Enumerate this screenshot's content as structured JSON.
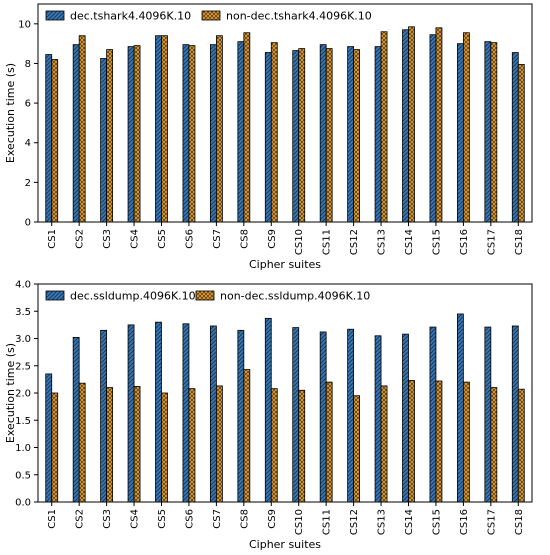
{
  "chart_data": [
    {
      "type": "bar",
      "xlabel": "Cipher suites",
      "ylabel": "Execution time (s)",
      "ylim": [
        0,
        11
      ],
      "yticks": [
        0,
        2,
        4,
        6,
        8,
        10
      ],
      "legend_position": "top-left",
      "grid": false,
      "categories": [
        "CS1",
        "CS2",
        "CS3",
        "CS4",
        "CS5",
        "CS6",
        "CS7",
        "CS8",
        "CS9",
        "CS10",
        "CS11",
        "CS12",
        "CS13",
        "CS14",
        "CS15",
        "CS16",
        "CS17",
        "CS18"
      ],
      "series": [
        {
          "name": "dec.tshark4.4096K.10",
          "color": "#3a78b5",
          "hatch": "diagonal",
          "values": [
            8.45,
            8.95,
            8.25,
            8.85,
            9.4,
            8.95,
            8.95,
            9.1,
            8.55,
            8.65,
            8.95,
            8.85,
            8.85,
            9.7,
            9.45,
            9.0,
            9.1,
            8.55
          ]
        },
        {
          "name": "non-dec.tshark4.4096K.10",
          "color": "#e8a33a",
          "hatch": "cross",
          "values": [
            8.2,
            9.4,
            8.7,
            8.9,
            9.4,
            8.9,
            9.4,
            9.55,
            9.05,
            8.75,
            8.75,
            8.7,
            9.6,
            9.85,
            9.8,
            9.55,
            9.05,
            7.95
          ]
        }
      ]
    },
    {
      "type": "bar",
      "xlabel": "Cipher suites",
      "ylabel": "Execution time (s)",
      "ylim": [
        0,
        4.0
      ],
      "yticks": [
        "0.0",
        "0.5",
        "1.0",
        "1.5",
        "2.0",
        "2.5",
        "3.0",
        "3.5",
        "4.0"
      ],
      "legend_position": "top-left",
      "grid": false,
      "categories": [
        "CS1",
        "CS2",
        "CS3",
        "CS4",
        "CS5",
        "CS6",
        "CS7",
        "CS8",
        "CS9",
        "CS10",
        "CS11",
        "CS12",
        "CS13",
        "CS14",
        "CS15",
        "CS16",
        "CS17",
        "CS18"
      ],
      "series": [
        {
          "name": "dec.ssldump.4096K.10",
          "color": "#3a78b5",
          "hatch": "diagonal",
          "values": [
            2.35,
            3.02,
            3.15,
            3.25,
            3.3,
            3.27,
            3.23,
            3.15,
            3.37,
            3.2,
            3.12,
            3.17,
            3.05,
            3.08,
            3.21,
            3.45,
            3.21,
            3.23
          ]
        },
        {
          "name": "non-dec.ssldump.4096K.10",
          "color": "#e8a33a",
          "hatch": "cross",
          "values": [
            2.0,
            2.18,
            2.1,
            2.12,
            2.0,
            2.08,
            2.13,
            2.43,
            2.08,
            2.05,
            2.2,
            1.95,
            2.13,
            2.23,
            2.22,
            2.2,
            2.1,
            2.07
          ]
        }
      ]
    }
  ]
}
